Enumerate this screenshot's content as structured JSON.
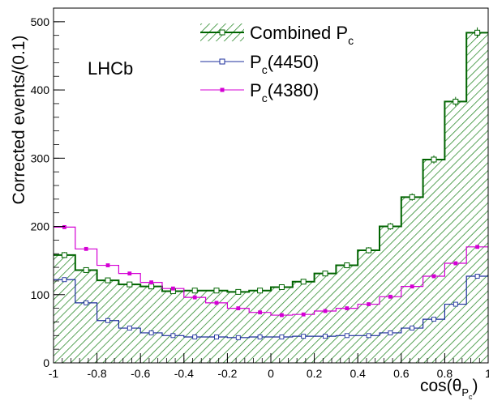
{
  "chart_data": {
    "type": "histogram",
    "experiment_label": "LHCb",
    "xlabel": {
      "base": "cos(θ",
      "sub": "P",
      "subsub": "c",
      "close": ")"
    },
    "ylabel": "Corrected events/(0.1)",
    "xlim": [
      -1,
      1
    ],
    "ylim": [
      0,
      520
    ],
    "x_ticks": [
      -1,
      -0.8,
      -0.6,
      -0.4,
      -0.2,
      0,
      0.2,
      0.4,
      0.6,
      0.8,
      1
    ],
    "x_tick_labels": [
      "-1",
      "-0.8",
      "-0.6",
      "-0.4",
      "-0.2",
      "0",
      "0.2",
      "0.4",
      "0.6",
      "0.8",
      "1"
    ],
    "y_ticks": [
      0,
      100,
      200,
      300,
      400,
      500
    ],
    "y_tick_labels": [
      "0",
      "100",
      "200",
      "300",
      "400",
      "500"
    ],
    "bin_edges": [
      -1,
      -0.9,
      -0.8,
      -0.7,
      -0.6,
      -0.5,
      -0.4,
      -0.3,
      -0.2,
      -0.1,
      0,
      0.1,
      0.2,
      0.3,
      0.4,
      0.5,
      0.6,
      0.7,
      0.8,
      0.9,
      1
    ],
    "series": [
      {
        "name": "Combined P",
        "name_sub": "c",
        "color": "#006400",
        "fill": "hatched",
        "values": [
          158,
          136,
          121,
          115,
          112,
          105,
          106,
          106,
          104,
          106,
          111,
          119,
          131,
          143,
          165,
          200,
          243,
          298,
          383,
          484
        ]
      },
      {
        "name": "P",
        "name_sub": "c",
        "name_suffix": "(4450)",
        "color": "#1c2f9c",
        "values": [
          122,
          88,
          62,
          51,
          44,
          40,
          38,
          38,
          37,
          38,
          38,
          39,
          39,
          40,
          40,
          44,
          51,
          64,
          86,
          127
        ]
      },
      {
        "name": "P",
        "name_sub": "c",
        "name_suffix": "(4380)",
        "color": "#d400d4",
        "values": [
          199,
          167,
          143,
          131,
          118,
          109,
          96,
          88,
          80,
          74,
          70,
          71,
          76,
          80,
          86,
          97,
          112,
          127,
          146,
          170
        ]
      }
    ],
    "legend_position": "top-right",
    "grid": false
  }
}
